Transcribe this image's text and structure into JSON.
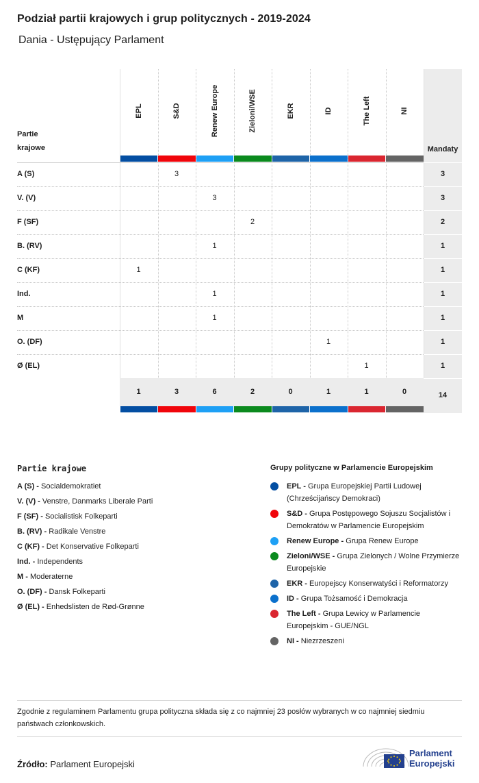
{
  "header": {
    "title": "Podział partii krajowych i grup politycznych - 2019-2024",
    "subtitle": "Dania - Ustępujący Parlament"
  },
  "table": {
    "party_header_line1": "Partie",
    "party_header_line2": "krajowe",
    "mandates_header": "Mandaty",
    "groups": [
      {
        "name": "EPL",
        "color": "#034ea2"
      },
      {
        "name": "S&D",
        "color": "#f0050b"
      },
      {
        "name": "Renew Europe",
        "color": "#1ea0f5"
      },
      {
        "name": "Zieloni/WSE",
        "color": "#0b8a1e"
      },
      {
        "name": "EKR",
        "color": "#1e64a8"
      },
      {
        "name": "ID",
        "color": "#0b70cc"
      },
      {
        "name": "The Left",
        "color": "#da2630"
      },
      {
        "name": "NI",
        "color": "#646464"
      }
    ],
    "rows": [
      {
        "party": "A (S)",
        "values": [
          "",
          "3",
          "",
          "",
          "",
          "",
          "",
          ""
        ],
        "total": "3"
      },
      {
        "party": "V. (V)",
        "values": [
          "",
          "",
          "3",
          "",
          "",
          "",
          "",
          ""
        ],
        "total": "3"
      },
      {
        "party": "F (SF)",
        "values": [
          "",
          "",
          "",
          "2",
          "",
          "",
          "",
          ""
        ],
        "total": "2"
      },
      {
        "party": "B. (RV)",
        "values": [
          "",
          "",
          "1",
          "",
          "",
          "",
          "",
          ""
        ],
        "total": "1"
      },
      {
        "party": "C (KF)",
        "values": [
          "1",
          "",
          "",
          "",
          "",
          "",
          "",
          ""
        ],
        "total": "1"
      },
      {
        "party": "Ind.",
        "values": [
          "",
          "",
          "1",
          "",
          "",
          "",
          "",
          ""
        ],
        "total": "1"
      },
      {
        "party": "M",
        "values": [
          "",
          "",
          "1",
          "",
          "",
          "",
          "",
          ""
        ],
        "total": "1"
      },
      {
        "party": "O. (DF)",
        "values": [
          "",
          "",
          "",
          "",
          "",
          "1",
          "",
          ""
        ],
        "total": "1"
      },
      {
        "party": "Ø (EL)",
        "values": [
          "",
          "",
          "",
          "",
          "",
          "",
          "1",
          ""
        ],
        "total": "1"
      }
    ],
    "group_totals": [
      "1",
      "3",
      "6",
      "2",
      "0",
      "1",
      "1",
      "0"
    ],
    "grand_total": "14"
  },
  "legend_parties": {
    "title": "Partie krajowe",
    "items": [
      {
        "abbr": "A (S) -",
        "name": "Socialdemokratiet"
      },
      {
        "abbr": "V. (V) -",
        "name": "Venstre, Danmarks Liberale Parti"
      },
      {
        "abbr": "F (SF) -",
        "name": "Socialistisk Folkeparti"
      },
      {
        "abbr": "B. (RV) -",
        "name": "Radikale Venstre"
      },
      {
        "abbr": "C (KF) -",
        "name": "Det Konservative Folkeparti"
      },
      {
        "abbr": "Ind. -",
        "name": "Independents"
      },
      {
        "abbr": "M -",
        "name": "Moderaterne"
      },
      {
        "abbr": "O. (DF) -",
        "name": "Dansk Folkeparti"
      },
      {
        "abbr": "Ø (EL) -",
        "name": "Enhedslisten de Rød-Grønne"
      }
    ]
  },
  "legend_groups": {
    "title": "Grupy polityczne w Parlamencie Europejskim",
    "items": [
      {
        "abbr": "EPL -",
        "name": "Grupa Europejskiej Partii Ludowej (Chrześcijańscy Demokraci)",
        "color": "#034ea2"
      },
      {
        "abbr": "S&D -",
        "name": "Grupa Postępowego Sojuszu Socjalistów i Demokratów w Parlamencie Europejskim",
        "color": "#f0050b"
      },
      {
        "abbr": "Renew Europe -",
        "name": "Grupa Renew Europe",
        "color": "#1ea0f5"
      },
      {
        "abbr": "Zieloni/WSE -",
        "name": "Grupa Zielonych / Wolne Przymierze Europejskie",
        "color": "#0b8a1e"
      },
      {
        "abbr": "EKR -",
        "name": "Europejscy Konserwatyści i Reformatorzy",
        "color": "#1e64a8"
      },
      {
        "abbr": "ID -",
        "name": "Grupa Tożsamość i Demokracja",
        "color": "#0b70cc"
      },
      {
        "abbr": "The Left -",
        "name": "Grupa Lewicy w Parlamencie Europejskim - GUE/NGL",
        "color": "#da2630"
      },
      {
        "abbr": "NI -",
        "name": "Niezrzeszeni",
        "color": "#646464"
      }
    ]
  },
  "footer": {
    "note": "Zgodnie z regulaminem Parlamentu grupa polityczna składa się z co najmniej 23 posłów wybranych w co najmniej siedmiu państwach członkowskich.",
    "source_label": "Źródło:",
    "source_value": "Parlament Europejski",
    "logo_line1": "Parlament",
    "logo_line2": "Europejski"
  }
}
